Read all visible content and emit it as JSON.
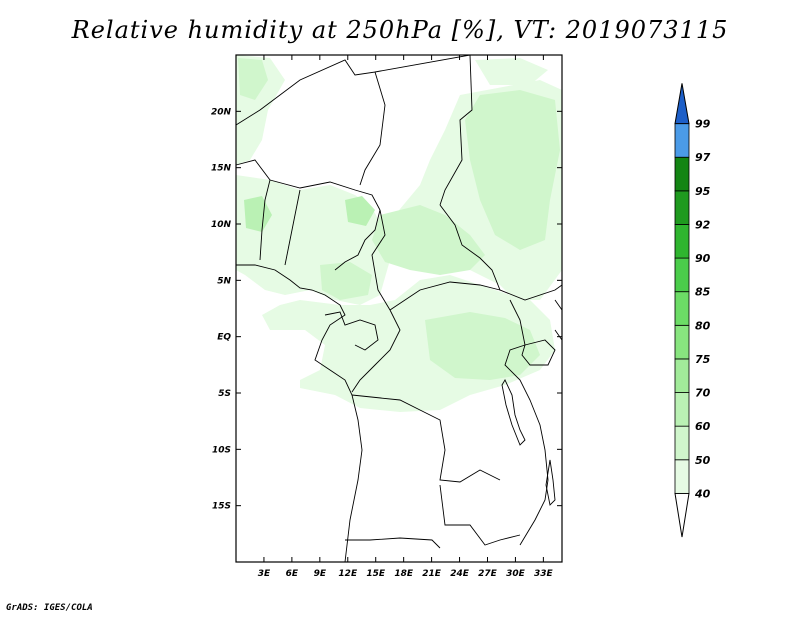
{
  "title": "Relative humidity at 250hPa [%], VT: 2019073115",
  "credit": "GrADS: IGES/COLA",
  "map": {
    "lon_range": [
      0,
      35
    ],
    "lat_range": [
      -20,
      25
    ],
    "lon_ticks": [
      {
        "value": 3,
        "label": "3E"
      },
      {
        "value": 6,
        "label": "6E"
      },
      {
        "value": 9,
        "label": "9E"
      },
      {
        "value": 12,
        "label": "12E"
      },
      {
        "value": 15,
        "label": "15E"
      },
      {
        "value": 18,
        "label": "18E"
      },
      {
        "value": 21,
        "label": "21E"
      },
      {
        "value": 24,
        "label": "24E"
      },
      {
        "value": 27,
        "label": "27E"
      },
      {
        "value": 30,
        "label": "30E"
      },
      {
        "value": 33,
        "label": "33E"
      }
    ],
    "lat_ticks": [
      {
        "value": 20,
        "label": "20N"
      },
      {
        "value": 15,
        "label": "15N"
      },
      {
        "value": 10,
        "label": "10N"
      },
      {
        "value": 5,
        "label": "5N"
      },
      {
        "value": 0,
        "label": "EQ"
      },
      {
        "value": -5,
        "label": "5S"
      },
      {
        "value": -10,
        "label": "10S"
      },
      {
        "value": -15,
        "label": "15S"
      }
    ]
  },
  "colorbar": {
    "labels": [
      "40",
      "50",
      "60",
      "70",
      "75",
      "80",
      "85",
      "90",
      "92",
      "95",
      "97",
      "99"
    ],
    "colors": [
      "#ffffff",
      "#e6fbe4",
      "#d0f6cc",
      "#baf1b4",
      "#a2eb9a",
      "#88e57f",
      "#6cdc66",
      "#4bcd4b",
      "#2fb52f",
      "#1f9a1f",
      "#138513",
      "#4b9be8",
      "#2a7fe0",
      "#1d5fc8"
    ]
  },
  "colors": {
    "humid_light": "#e6fbe4",
    "humid_mid": "#d0f6cc",
    "humid_dark": "#baf1b4",
    "boundary": "#000000"
  }
}
